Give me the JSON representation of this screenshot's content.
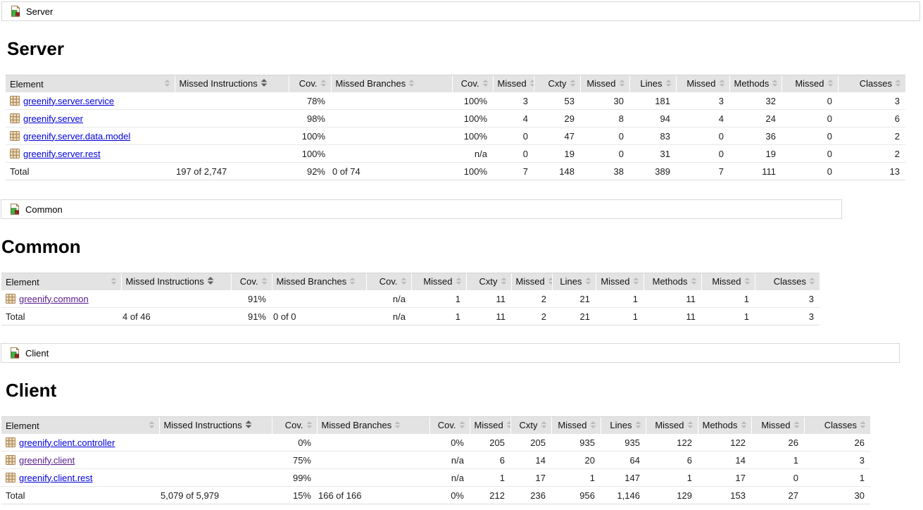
{
  "colors": {
    "link": "#0000dd",
    "link_visited": "#551a8b",
    "bar_green": "#55ca55",
    "bar_red": "#f85555",
    "header_bg": "#e3e3e3"
  },
  "columns": {
    "element": "Element",
    "missed_instructions": "Missed Instructions",
    "cov": "Cov.",
    "missed_branches": "Missed Branches",
    "missed": "Missed",
    "cxty": "Cxty",
    "lines": "Lines",
    "methods": "Methods",
    "classes": "Classes"
  },
  "sections": [
    {
      "id": "server",
      "breadcrumb": {
        "label": "Server"
      },
      "title": "Server",
      "table": {
        "rows": [
          {
            "name": "greenify.server.service",
            "visited": false,
            "instr_bar": {
              "red": 22,
              "green": 69
            },
            "instr_cov": "78%",
            "branch_bar": {
              "red": 0,
              "green": 150
            },
            "branch_cov": "100%",
            "missed_cxty": "3",
            "cxty": "53",
            "missed_lines": "30",
            "lines": "181",
            "missed_methods": "3",
            "methods": "32",
            "missed_classes": "0",
            "classes": "3"
          },
          {
            "name": "greenify.server",
            "visited": false,
            "instr_bar": {
              "red": 3,
              "green": 149
            },
            "instr_cov": "98%",
            "branch_bar": {
              "red": 0,
              "green": 34
            },
            "branch_cov": "100%",
            "missed_cxty": "4",
            "cxty": "29",
            "missed_lines": "8",
            "lines": "94",
            "missed_methods": "4",
            "methods": "24",
            "missed_classes": "0",
            "classes": "6"
          },
          {
            "name": "greenify.server.data.model",
            "visited": false,
            "instr_bar": {
              "red": 0,
              "green": 38
            },
            "instr_cov": "100%",
            "branch_bar": {
              "red": 0,
              "green": 76
            },
            "branch_cov": "100%",
            "missed_cxty": "0",
            "cxty": "47",
            "missed_lines": "0",
            "lines": "83",
            "missed_methods": "0",
            "methods": "36",
            "missed_classes": "0",
            "classes": "2"
          },
          {
            "name": "greenify.server.rest",
            "visited": false,
            "instr_bar": {
              "red": 0,
              "green": 12
            },
            "instr_cov": "100%",
            "branch_bar": null,
            "branch_cov": "n/a",
            "missed_cxty": "0",
            "cxty": "19",
            "missed_lines": "0",
            "lines": "31",
            "missed_methods": "0",
            "methods": "19",
            "missed_classes": "0",
            "classes": "2"
          }
        ],
        "total": {
          "label": "Total",
          "instr": "197 of 2,747",
          "instr_cov": "92%",
          "branches": "0 of 74",
          "branch_cov": "100%",
          "missed_cxty": "7",
          "cxty": "148",
          "missed_lines": "38",
          "lines": "389",
          "missed_methods": "7",
          "methods": "111",
          "missed_classes": "0",
          "classes": "13"
        }
      }
    },
    {
      "id": "common",
      "breadcrumb": {
        "label": "Common"
      },
      "title": "Common",
      "table": {
        "rows": [
          {
            "name": "greenify.common",
            "visited": true,
            "instr_bar": {
              "red": 13,
              "green": 139
            },
            "instr_cov": "91%",
            "branch_bar": null,
            "branch_cov": "n/a",
            "missed_cxty": "1",
            "cxty": "11",
            "missed_lines": "2",
            "lines": "21",
            "missed_methods": "1",
            "methods": "11",
            "missed_classes": "1",
            "classes": "3"
          }
        ],
        "total": {
          "label": "Total",
          "instr": "4 of 46",
          "instr_cov": "91%",
          "branches": "0 of 0",
          "branch_cov": "n/a",
          "missed_cxty": "1",
          "cxty": "11",
          "missed_lines": "2",
          "lines": "21",
          "missed_methods": "1",
          "methods": "11",
          "missed_classes": "1",
          "classes": "3"
        }
      }
    },
    {
      "id": "client",
      "breadcrumb": {
        "label": "Client"
      },
      "title": "Client",
      "table": {
        "rows": [
          {
            "name": "greenify.client.controller",
            "visited": false,
            "instr_bar": {
              "red": 152,
              "green": 0
            },
            "instr_cov": "0%",
            "branch_bar": {
              "red": 152,
              "green": 0
            },
            "branch_cov": "0%",
            "missed_cxty": "205",
            "cxty": "205",
            "missed_lines": "935",
            "lines": "935",
            "missed_methods": "122",
            "methods": "122",
            "missed_classes": "26",
            "classes": "26"
          },
          {
            "name": "greenify.client",
            "visited": true,
            "instr_bar": {
              "red": 2,
              "green": 5
            },
            "instr_cov": "75%",
            "branch_bar": null,
            "branch_cov": "n/a",
            "missed_cxty": "6",
            "cxty": "14",
            "missed_lines": "20",
            "lines": "64",
            "missed_methods": "6",
            "methods": "14",
            "missed_classes": "1",
            "classes": "3"
          },
          {
            "name": "greenify.client.rest",
            "visited": false,
            "instr_bar": {
              "red": 0,
              "green": 22
            },
            "instr_cov": "99%",
            "branch_bar": null,
            "branch_cov": "n/a",
            "missed_cxty": "1",
            "cxty": "17",
            "missed_lines": "1",
            "lines": "147",
            "missed_methods": "1",
            "methods": "17",
            "missed_classes": "0",
            "classes": "1"
          }
        ],
        "total": {
          "label": "Total",
          "instr": "5,079 of 5,979",
          "instr_cov": "15%",
          "branches": "166 of 166",
          "branch_cov": "0%",
          "missed_cxty": "212",
          "cxty": "236",
          "missed_lines": "956",
          "lines": "1,146",
          "missed_methods": "129",
          "methods": "153",
          "missed_classes": "27",
          "classes": "30"
        }
      }
    }
  ]
}
